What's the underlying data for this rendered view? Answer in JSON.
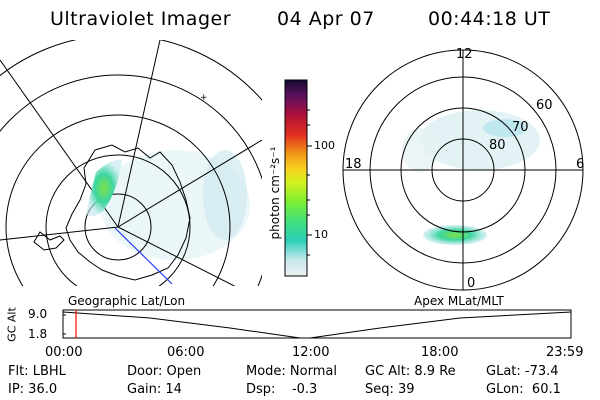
{
  "header": {
    "instrument": "Ultraviolet Imager",
    "date": "04 Apr 07",
    "time": "00:44:18 UT"
  },
  "colorbar": {
    "label": "photon cm⁻²s⁻¹",
    "ticks": [
      "100",
      "10"
    ]
  },
  "left_map": {
    "label": "Geographic Lat/Lon"
  },
  "right_map": {
    "label": "Apex MLat/MLT",
    "mlt_labels": {
      "top": "12",
      "left": "18",
      "right": "6",
      "bottom": "0"
    },
    "lat_labels": [
      "80",
      "70",
      "60"
    ]
  },
  "timeline": {
    "axis_label": "GC Alt",
    "y_ticks": [
      "9.0",
      "1.8"
    ],
    "x_ticks": [
      "00:00",
      "06:00",
      "12:00",
      "18:00",
      "23:59"
    ],
    "marker_color": "#ff0000"
  },
  "footer": {
    "flt": "Flt: LBHL",
    "ip": "IP: 36.0",
    "door": "Door: Open",
    "gain": "Gain: 14",
    "mode": "Mode: Normal",
    "dsp": "Dsp:    -0.3",
    "gcalt": "GC Alt: 8.9 Re",
    "seq": "Seq: 39",
    "glat": "GLat: -73.4",
    "glon": "GLon:  60.1"
  }
}
